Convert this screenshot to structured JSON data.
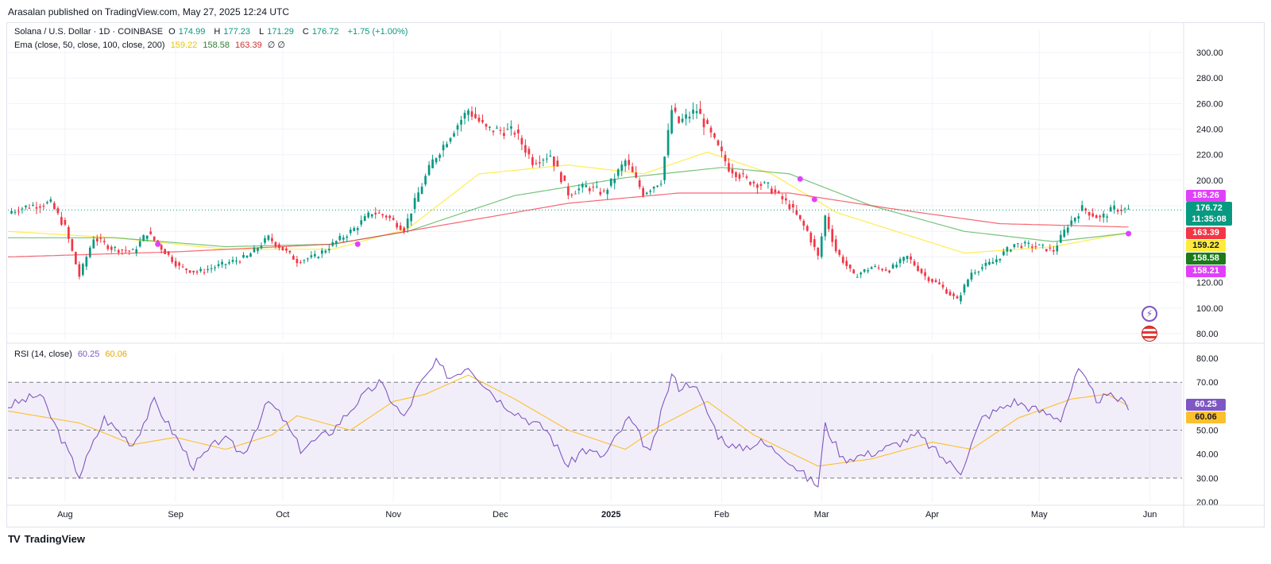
{
  "header": {
    "published_by": "Arasalan published on TradingView.com, May 27, 2025 12:24 UTC"
  },
  "legend": {
    "symbol": "Solana / U.S. Dollar · 1D · COINBASE",
    "ohlc": [
      {
        "label": "O",
        "value": "174.99"
      },
      {
        "label": "H",
        "value": "177.23"
      },
      {
        "label": "L",
        "value": "171.29"
      },
      {
        "label": "C",
        "value": "176.72"
      }
    ],
    "change": "+1.75 (+1.00%)",
    "ema_label": "Ema (close, 50, close, 100, close, 200)",
    "ema_values": [
      "159.22",
      "158.58",
      "163.39"
    ],
    "ema_extra": "∅ ∅",
    "rsi_label": "RSI (14, close)",
    "rsi_values": [
      "60.25",
      "60.06"
    ]
  },
  "price_tags": {
    "pink_top": "185.26",
    "current": "176.72",
    "countdown": "11:35:08",
    "ema200": "163.39",
    "ema50": "159.22",
    "ema100": "158.58",
    "pink_bottom": "158.21"
  },
  "rsi_tags": {
    "rsi": "60.25",
    "ma": "60.06"
  },
  "footer": {
    "logo_text": "TV",
    "brand": "TradingView"
  },
  "colors": {
    "up": "#089981",
    "down": "#f23645",
    "ema50": "#ffeb3b",
    "ema100": "#4caf50",
    "ema200": "#f23645",
    "rsi": "#7e57c2",
    "rsi_ma": "#fbc02d",
    "marker": "#e040fb"
  },
  "chart_data": [
    {
      "type": "candlestick",
      "title": "Solana / U.S. Dollar · 1D · COINBASE",
      "ylim": [
        75,
        305
      ],
      "y_ticks": [
        80,
        100,
        120,
        140,
        160,
        180,
        200,
        220,
        240,
        260,
        280,
        300
      ],
      "x_ticks": [
        {
          "label": "Aug",
          "date": "2024-08-01"
        },
        {
          "label": "Sep",
          "date": "2024-09-01"
        },
        {
          "label": "Oct",
          "date": "2024-10-01"
        },
        {
          "label": "Nov",
          "date": "2024-11-01"
        },
        {
          "label": "Dec",
          "date": "2024-12-01"
        },
        {
          "label": "2025",
          "date": "2025-01-01"
        },
        {
          "label": "Feb",
          "date": "2025-02-01"
        },
        {
          "label": "Mar",
          "date": "2025-03-01"
        },
        {
          "label": "Apr",
          "date": "2025-04-01"
        },
        {
          "label": "May",
          "date": "2025-05-01"
        },
        {
          "label": "Jun",
          "date": "2025-06-01"
        }
      ],
      "x_range": [
        "2024-07-16",
        "2025-06-10"
      ],
      "price_anchors": [
        [
          "2024-07-17",
          176
        ],
        [
          "2024-07-22",
          180
        ],
        [
          "2024-07-28",
          182
        ],
        [
          "2024-08-01",
          163
        ],
        [
          "2024-08-05",
          125
        ],
        [
          "2024-08-09",
          155
        ],
        [
          "2024-08-14",
          147
        ],
        [
          "2024-08-20",
          144
        ],
        [
          "2024-08-24",
          159
        ],
        [
          "2024-08-27",
          150
        ],
        [
          "2024-09-02",
          132
        ],
        [
          "2024-09-07",
          128
        ],
        [
          "2024-09-13",
          133
        ],
        [
          "2024-09-21",
          140
        ],
        [
          "2024-09-27",
          155
        ],
        [
          "2024-10-01",
          146
        ],
        [
          "2024-10-05",
          137
        ],
        [
          "2024-10-10",
          140
        ],
        [
          "2024-10-15",
          150
        ],
        [
          "2024-10-21",
          162
        ],
        [
          "2024-10-26",
          175
        ],
        [
          "2024-10-30",
          172
        ],
        [
          "2024-11-04",
          162
        ],
        [
          "2024-11-08",
          190
        ],
        [
          "2024-11-12",
          215
        ],
        [
          "2024-11-18",
          240
        ],
        [
          "2024-11-22",
          255
        ],
        [
          "2024-11-27",
          240
        ],
        [
          "2024-12-05",
          238
        ],
        [
          "2024-12-10",
          215
        ],
        [
          "2024-12-15",
          220
        ],
        [
          "2024-12-20",
          190
        ],
        [
          "2024-12-25",
          195
        ],
        [
          "2024-12-30",
          190
        ],
        [
          "2025-01-05",
          215
        ],
        [
          "2025-01-10",
          190
        ],
        [
          "2025-01-15",
          200
        ],
        [
          "2025-01-18",
          255
        ],
        [
          "2025-01-20",
          245
        ],
        [
          "2025-01-25",
          255
        ],
        [
          "2025-01-30",
          230
        ],
        [
          "2025-02-03",
          210
        ],
        [
          "2025-02-08",
          200
        ],
        [
          "2025-02-14",
          195
        ],
        [
          "2025-02-20",
          180
        ],
        [
          "2025-02-25",
          160
        ],
        [
          "2025-02-28",
          140
        ],
        [
          "2025-03-02",
          172
        ],
        [
          "2025-03-05",
          145
        ],
        [
          "2025-03-10",
          125
        ],
        [
          "2025-03-15",
          132
        ],
        [
          "2025-03-20",
          130
        ],
        [
          "2025-03-25",
          140
        ],
        [
          "2025-03-30",
          125
        ],
        [
          "2025-04-03",
          118
        ],
        [
          "2025-04-08",
          106
        ],
        [
          "2025-04-12",
          128
        ],
        [
          "2025-04-18",
          136
        ],
        [
          "2025-04-24",
          150
        ],
        [
          "2025-05-01",
          148
        ],
        [
          "2025-05-05",
          145
        ],
        [
          "2025-05-09",
          165
        ],
        [
          "2025-05-13",
          178
        ],
        [
          "2025-05-18",
          170
        ],
        [
          "2025-05-22",
          178
        ],
        [
          "2025-05-26",
          176.72
        ]
      ],
      "ema_series": [
        {
          "name": "EMA 50",
          "last": 159.22,
          "anchors": [
            [
              "2024-07-16",
              160
            ],
            [
              "2024-08-15",
              155
            ],
            [
              "2024-09-15",
              146
            ],
            [
              "2024-10-15",
              146
            ],
            [
              "2024-11-05",
              162
            ],
            [
              "2024-11-25",
              205
            ],
            [
              "2024-12-20",
              212
            ],
            [
              "2025-01-10",
              205
            ],
            [
              "2025-01-28",
              222
            ],
            [
              "2025-02-15",
              205
            ],
            [
              "2025-03-05",
              175
            ],
            [
              "2025-04-10",
              143
            ],
            [
              "2025-05-05",
              148
            ],
            [
              "2025-05-26",
              159
            ]
          ]
        },
        {
          "name": "EMA 100",
          "last": 158.58,
          "anchors": [
            [
              "2024-07-16",
              155
            ],
            [
              "2024-08-15",
              155
            ],
            [
              "2024-09-15",
              148
            ],
            [
              "2024-10-15",
              150
            ],
            [
              "2024-11-05",
              160
            ],
            [
              "2024-12-05",
              188
            ],
            [
              "2025-01-05",
              202
            ],
            [
              "2025-02-01",
              210
            ],
            [
              "2025-02-20",
              205
            ],
            [
              "2025-03-15",
              180
            ],
            [
              "2025-04-10",
              160
            ],
            [
              "2025-05-05",
              152
            ],
            [
              "2025-05-26",
              158.6
            ]
          ]
        },
        {
          "name": "EMA 200",
          "last": 163.39,
          "anchors": [
            [
              "2024-07-16",
              140
            ],
            [
              "2024-09-01",
              144
            ],
            [
              "2024-10-15",
              150
            ],
            [
              "2024-11-15",
              165
            ],
            [
              "2024-12-20",
              182
            ],
            [
              "2025-01-20",
              190
            ],
            [
              "2025-02-20",
              190
            ],
            [
              "2025-03-20",
              178
            ],
            [
              "2025-04-20",
              166
            ],
            [
              "2025-05-26",
              163.4
            ]
          ]
        }
      ],
      "cross_markers": [
        [
          "2024-08-27",
          150
        ],
        [
          "2024-10-22",
          150
        ],
        [
          "2025-02-23",
          201
        ],
        [
          "2025-02-27",
          185
        ]
      ]
    },
    {
      "type": "line",
      "title": "RSI (14, close)",
      "ylim": [
        20,
        82
      ],
      "y_ticks": [
        20,
        30,
        40,
        50,
        60,
        70,
        80
      ],
      "bands": [
        30,
        50,
        70
      ],
      "series": [
        {
          "name": "RSI",
          "last": 60.25,
          "anchors": [
            [
              "2024-07-16",
              60
            ],
            [
              "2024-07-25",
              65
            ],
            [
              "2024-08-05",
              31
            ],
            [
              "2024-08-12",
              55
            ],
            [
              "2024-08-20",
              44
            ],
            [
              "2024-08-26",
              62
            ],
            [
              "2024-09-06",
              35
            ],
            [
              "2024-09-14",
              47
            ],
            [
              "2024-09-20",
              40
            ],
            [
              "2024-09-27",
              62
            ],
            [
              "2024-10-01",
              55
            ],
            [
              "2024-10-06",
              42
            ],
            [
              "2024-10-15",
              50
            ],
            [
              "2024-10-22",
              62
            ],
            [
              "2024-10-28",
              70
            ],
            [
              "2024-11-04",
              55
            ],
            [
              "2024-11-08",
              68
            ],
            [
              "2024-11-13",
              78
            ],
            [
              "2024-11-17",
              72
            ],
            [
              "2024-11-22",
              77
            ],
            [
              "2024-11-26",
              70
            ],
            [
              "2024-12-01",
              62
            ],
            [
              "2024-12-08",
              55
            ],
            [
              "2024-12-14",
              50
            ],
            [
              "2024-12-20",
              35
            ],
            [
              "2024-12-24",
              42
            ],
            [
              "2024-12-30",
              39
            ],
            [
              "2025-01-06",
              55
            ],
            [
              "2025-01-12",
              40
            ],
            [
              "2025-01-18",
              73
            ],
            [
              "2025-01-20",
              68
            ],
            [
              "2025-01-24",
              70
            ],
            [
              "2025-01-31",
              48
            ],
            [
              "2025-02-05",
              42
            ],
            [
              "2025-02-12",
              45
            ],
            [
              "2025-02-18",
              40
            ],
            [
              "2025-02-25",
              30
            ],
            [
              "2025-02-28",
              27
            ],
            [
              "2025-03-02",
              52
            ],
            [
              "2025-03-07",
              38
            ],
            [
              "2025-03-14",
              40
            ],
            [
              "2025-03-20",
              43
            ],
            [
              "2025-03-28",
              48
            ],
            [
              "2025-04-05",
              37
            ],
            [
              "2025-04-09",
              33
            ],
            [
              "2025-04-15",
              55
            ],
            [
              "2025-04-24",
              62
            ],
            [
              "2025-05-01",
              58
            ],
            [
              "2025-05-07",
              55
            ],
            [
              "2025-05-12",
              75
            ],
            [
              "2025-05-17",
              63
            ],
            [
              "2025-05-22",
              64
            ],
            [
              "2025-05-26",
              60.25
            ]
          ]
        },
        {
          "name": "RSI MA",
          "last": 60.06,
          "anchors": [
            [
              "2024-07-16",
              58
            ],
            [
              "2024-08-05",
              53
            ],
            [
              "2024-08-20",
              44
            ],
            [
              "2024-09-01",
              47
            ],
            [
              "2024-09-15",
              42
            ],
            [
              "2024-09-28",
              48
            ],
            [
              "2024-10-05",
              56
            ],
            [
              "2024-10-20",
              50
            ],
            [
              "2024-11-01",
              62
            ],
            [
              "2024-11-10",
              65
            ],
            [
              "2024-11-22",
              73
            ],
            [
              "2024-12-05",
              63
            ],
            [
              "2024-12-20",
              50
            ],
            [
              "2025-01-05",
              42
            ],
            [
              "2025-01-15",
              52
            ],
            [
              "2025-01-28",
              62
            ],
            [
              "2025-02-10",
              48
            ],
            [
              "2025-02-28",
              35
            ],
            [
              "2025-03-15",
              38
            ],
            [
              "2025-04-01",
              45
            ],
            [
              "2025-04-12",
              42
            ],
            [
              "2025-04-25",
              55
            ],
            [
              "2025-05-10",
              63
            ],
            [
              "2025-05-20",
              65
            ],
            [
              "2025-05-26",
              60.06
            ]
          ]
        }
      ]
    }
  ]
}
